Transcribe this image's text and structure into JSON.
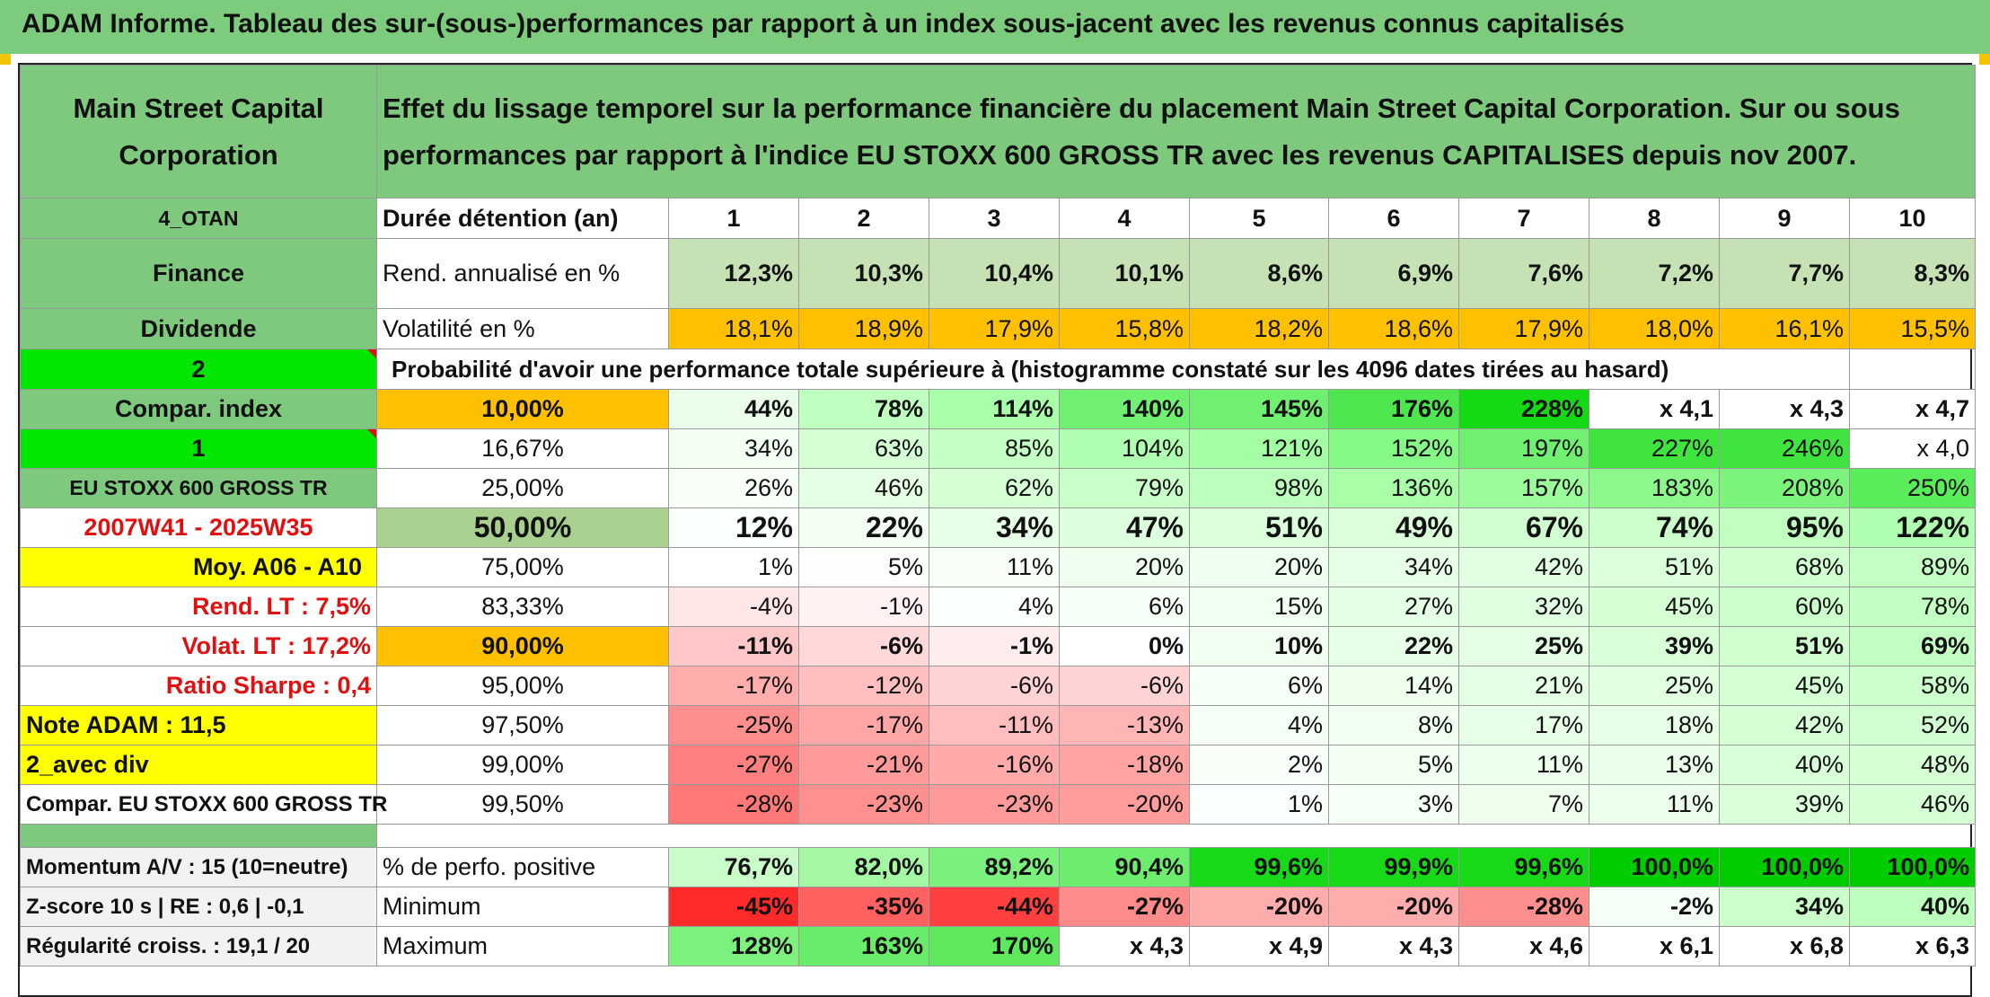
{
  "banner_title": "ADAM Informe. Tableau des sur-(sous-)performances par rapport à un index sous-jacent avec les revenus connus capitalisés",
  "header": {
    "name": "Main Street Capital Corporation",
    "description": "Effet du lissage temporel sur la performance financière du placement Main Street Capital Corporation. Sur ou sous performances par rapport à l'indice EU STOXX 600 GROSS TR avec les revenus CAPITALISES depuis nov 2007."
  },
  "left_labels": {
    "code": "4_OTAN",
    "sector": "Finance",
    "type": "Dividende",
    "num2": "2",
    "compar_index": "Compar. index",
    "num1": "1",
    "index_name": "EU STOXX 600 GROSS TR",
    "period": "2007W41 - 2025W35",
    "moy": "Moy. A06 - A10",
    "rend_lt": "Rend. LT :   7,5%",
    "volat_lt": "Volat. LT :   17,2%",
    "ratio_sharpe": "Ratio Sharpe :    0,4",
    "note_adam": "Note ADAM : 11,5",
    "avec_div": "2_avec div",
    "compar_full": "Compar. EU STOXX 600 GROSS TR",
    "momentum": "Momentum A/V : 15 (10=neutre)",
    "zscore": "Z-score 10 s | RE : 0,6 | -0,1",
    "regularite": "Régularité croiss. : 19,1 / 20"
  },
  "duree_label": "Durée détention (an)",
  "durations": [
    "1",
    "2",
    "3",
    "4",
    "5",
    "6",
    "7",
    "8",
    "9",
    "10"
  ],
  "rend_label": "Rend. annualisé en %",
  "rend": [
    "12,3%",
    "10,3%",
    "10,4%",
    "10,1%",
    "8,6%",
    "6,9%",
    "7,6%",
    "7,2%",
    "7,7%",
    "8,3%"
  ],
  "volat_label": "Volatilité en %",
  "volat": [
    "18,1%",
    "18,9%",
    "17,9%",
    "15,8%",
    "18,2%",
    "18,6%",
    "17,9%",
    "18,0%",
    "16,1%",
    "15,5%"
  ],
  "prob_label": "Probabilité d'avoir une performance totale supérieure à (histogramme constaté sur les 4096 dates tirées au hasard)",
  "prob_rows": [
    {
      "pct": "10,00%",
      "vals": [
        "44%",
        "78%",
        "114%",
        "140%",
        "145%",
        "176%",
        "228%",
        "x 4,1",
        "x 4,3",
        "x 4,7"
      ]
    },
    {
      "pct": "16,67%",
      "vals": [
        "34%",
        "63%",
        "85%",
        "104%",
        "121%",
        "152%",
        "197%",
        "227%",
        "246%",
        "x 4,0"
      ]
    },
    {
      "pct": "25,00%",
      "vals": [
        "26%",
        "46%",
        "62%",
        "79%",
        "98%",
        "136%",
        "157%",
        "183%",
        "208%",
        "250%"
      ]
    },
    {
      "pct": "50,00%",
      "vals": [
        "12%",
        "22%",
        "34%",
        "47%",
        "51%",
        "49%",
        "67%",
        "74%",
        "95%",
        "122%"
      ]
    },
    {
      "pct": "75,00%",
      "vals": [
        "1%",
        "5%",
        "11%",
        "20%",
        "20%",
        "34%",
        "42%",
        "51%",
        "68%",
        "89%"
      ]
    },
    {
      "pct": "83,33%",
      "vals": [
        "-4%",
        "-1%",
        "4%",
        "6%",
        "15%",
        "27%",
        "32%",
        "45%",
        "60%",
        "78%"
      ]
    },
    {
      "pct": "90,00%",
      "vals": [
        "-11%",
        "-6%",
        "-1%",
        "0%",
        "10%",
        "22%",
        "25%",
        "39%",
        "51%",
        "69%"
      ]
    },
    {
      "pct": "95,00%",
      "vals": [
        "-17%",
        "-12%",
        "-6%",
        "-6%",
        "6%",
        "14%",
        "21%",
        "25%",
        "45%",
        "58%"
      ]
    },
    {
      "pct": "97,50%",
      "vals": [
        "-25%",
        "-17%",
        "-11%",
        "-13%",
        "4%",
        "8%",
        "17%",
        "18%",
        "42%",
        "52%"
      ]
    },
    {
      "pct": "99,00%",
      "vals": [
        "-27%",
        "-21%",
        "-16%",
        "-18%",
        "2%",
        "5%",
        "11%",
        "13%",
        "40%",
        "48%"
      ]
    },
    {
      "pct": "99,50%",
      "vals": [
        "-28%",
        "-23%",
        "-23%",
        "-20%",
        "1%",
        "3%",
        "7%",
        "11%",
        "39%",
        "46%"
      ]
    }
  ],
  "positive_label": "% de perfo. positive",
  "positive": [
    "76,7%",
    "82,0%",
    "89,2%",
    "90,4%",
    "99,6%",
    "99,9%",
    "99,6%",
    "100,0%",
    "100,0%",
    "100,0%"
  ],
  "minimum_label": "Minimum",
  "minimum": [
    "-45%",
    "-35%",
    "-44%",
    "-27%",
    "-20%",
    "-20%",
    "-28%",
    "-2%",
    "34%",
    "40%"
  ],
  "maximum_label": "Maximum",
  "maximum": [
    "128%",
    "163%",
    "170%",
    "x 4,3",
    "x 4,9",
    "x 4,3",
    "x 4,6",
    "x 6,1",
    "x 6,8",
    "x 6,3"
  ],
  "colors": {
    "rend": [
      "#c6e2b5",
      "#c6e2b5",
      "#c6e2b5",
      "#c6e2b5",
      "#c6e2b5",
      "#c6e2b5",
      "#c6e2b5",
      "#c6e2b5",
      "#c6e2b5",
      "#c6e2b5"
    ],
    "volat": [
      "#ffc000",
      "#ffc000",
      "#ffc000",
      "#ffc000",
      "#ffc000",
      "#ffc000",
      "#ffc000",
      "#ffc000",
      "#ffc000",
      "#ffc000"
    ],
    "prob_pct": [
      "#ffc000",
      "#ffffff",
      "#ffffff",
      "#a9d08e",
      "#ffffff",
      "#ffffff",
      "#ffc000",
      "#ffffff",
      "#ffffff",
      "#ffffff",
      "#ffffff"
    ],
    "prob": [
      [
        "#e9fde9",
        "#bfffbf",
        "#a9ffa9",
        "#70f070",
        "#70f070",
        "#4ee64e",
        "#16d916",
        "#ffffff",
        "#ffffff",
        "#ffffff"
      ],
      [
        "#f2fff2",
        "#d4ffd4",
        "#c4ffc4",
        "#b0ffb0",
        "#a4ffa4",
        "#86f886",
        "#70f070",
        "#3fe43f",
        "#3fe43f",
        "#ffffff"
      ],
      [
        "#f7fff7",
        "#e4ffe4",
        "#d6ffd6",
        "#c9ffc9",
        "#bcffbc",
        "#a8ffa8",
        "#9cfc9c",
        "#8cf88c",
        "#7cf47c",
        "#5aec5a"
      ],
      [
        "#fbfffb",
        "#f2fff2",
        "#e8ffe8",
        "#deffde",
        "#dcffdc",
        "#dcffdc",
        "#d2ffd2",
        "#ccffcc",
        "#c0ffc0",
        "#b0ffb0"
      ],
      [
        "#ffffff",
        "#fcfffc",
        "#f7fff7",
        "#efffef",
        "#efffef",
        "#e7ffe7",
        "#e1ffe1",
        "#dcffdc",
        "#d0ffd0",
        "#c4ffc4"
      ],
      [
        "#ffe6e6",
        "#fff2f2",
        "#fbfffb",
        "#f6fff6",
        "#effff0",
        "#e5ffe5",
        "#e0ffe0",
        "#d6ffd6",
        "#ccffcc",
        "#c2ffc2"
      ],
      [
        "#ffc8c8",
        "#ffd9d9",
        "#ffeded",
        "#ffffff",
        "#f1fff1",
        "#e7ffe7",
        "#e4ffe4",
        "#d9ffd9",
        "#d0ffd0",
        "#c2ffc2"
      ],
      [
        "#ffadad",
        "#ffbfbf",
        "#ffd3d3",
        "#ffd3d3",
        "#f6fff6",
        "#eeffee",
        "#e5ffe5",
        "#e2ffe2",
        "#d5ffd5",
        "#ccffcc"
      ],
      [
        "#ff8e8e",
        "#ffa6a6",
        "#ffbdbd",
        "#ffb5b5",
        "#f6fff6",
        "#f0fff0",
        "#e8ffe8",
        "#e6ffe6",
        "#d6ffd6",
        "#d2ffd2"
      ],
      [
        "#ff8080",
        "#ff9a9a",
        "#ffabab",
        "#ffa3a3",
        "#f8fff8",
        "#f2fff2",
        "#ecffec",
        "#e9ffe9",
        "#d9ffd9",
        "#d6ffd6"
      ],
      [
        "#ff7979",
        "#ff9090",
        "#ff9a9a",
        "#ff9d9d",
        "#fbfffb",
        "#f5fff5",
        "#eeffee",
        "#ecffec",
        "#daffda",
        "#d6ffd6"
      ]
    ],
    "positive": [
      "#c9fcc9",
      "#a4f8a4",
      "#7cf07c",
      "#6ded6d",
      "#18d918",
      "#18d918",
      "#18d918",
      "#00cc00",
      "#00cc00",
      "#00cc00"
    ],
    "minimum": [
      "#ff2a2a",
      "#ff6060",
      "#ff4040",
      "#ff8b8b",
      "#ffacac",
      "#ffacac",
      "#ff8f8f",
      "#f5fff5",
      "#caffca",
      "#bdffbd"
    ],
    "maximum": [
      "#7ef07e",
      "#69ec69",
      "#5ee85e",
      "#ffffff",
      "#ffffff",
      "#ffffff",
      "#ffffff",
      "#ffffff",
      "#ffffff",
      "#ffffff"
    ]
  }
}
